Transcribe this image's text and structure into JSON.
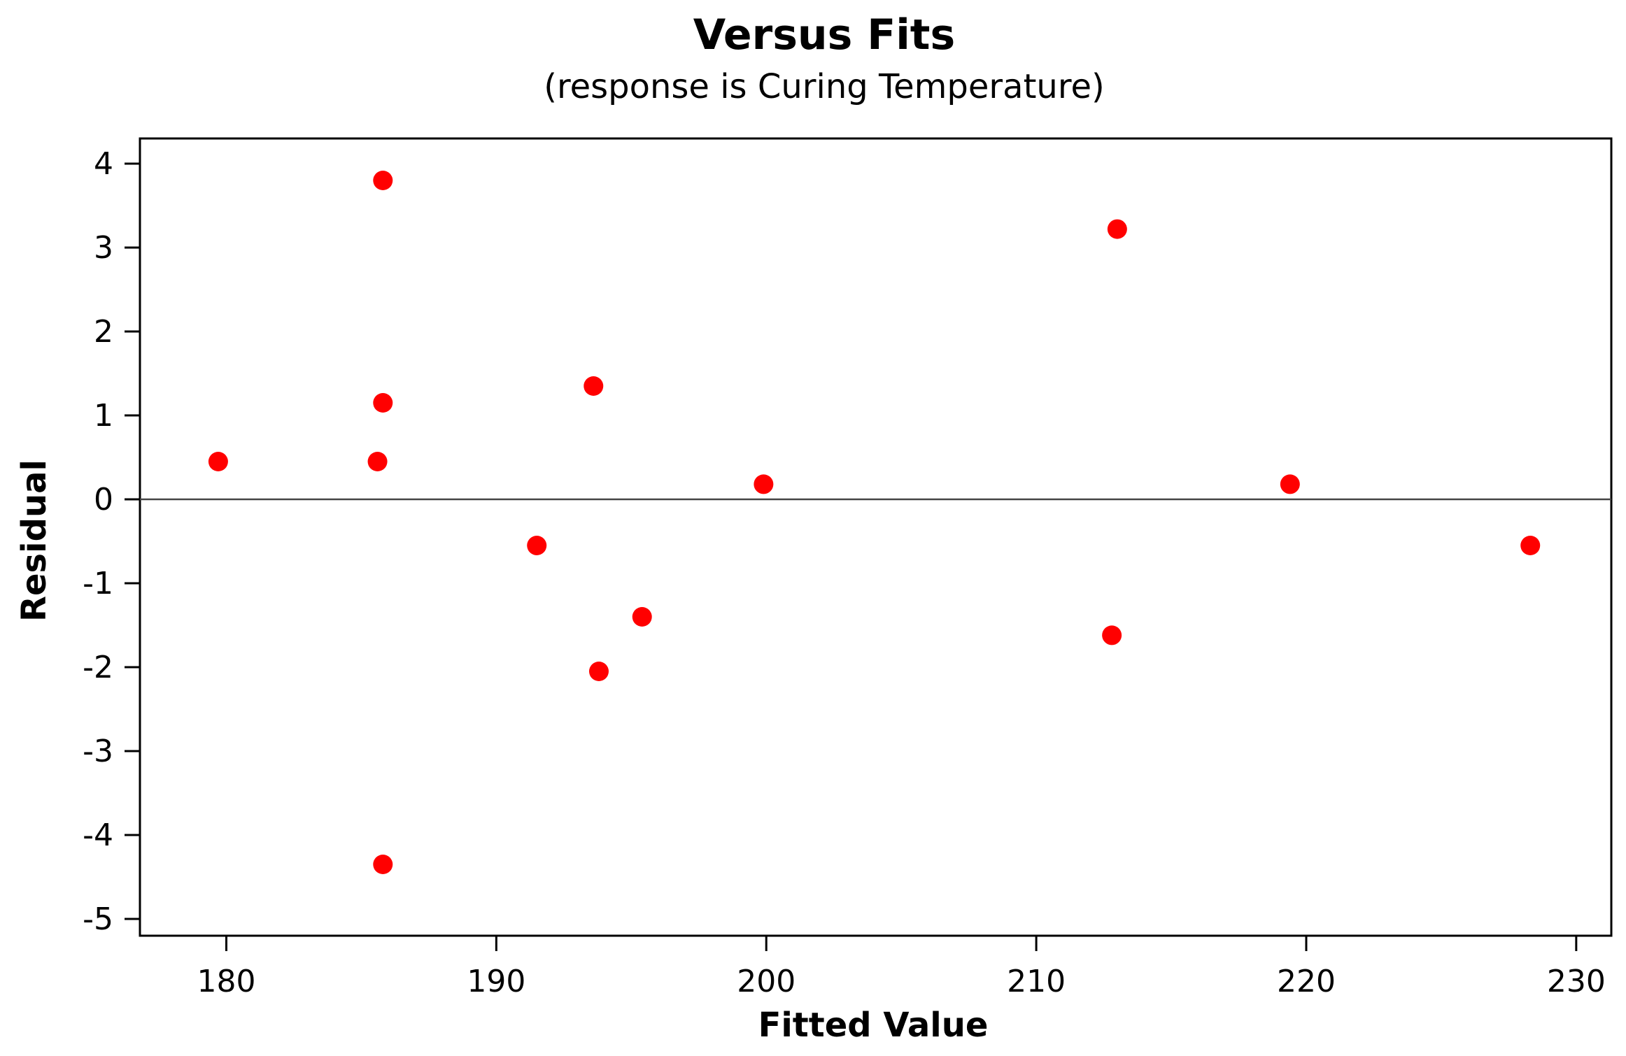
{
  "chart_data": {
    "type": "scatter",
    "title": "Versus Fits",
    "subtitle": "(response is Curing Temperature)",
    "xlabel": "Fitted Value",
    "ylabel": "Residual",
    "xlim": [
      176.8,
      231.3
    ],
    "ylim": [
      -5.2,
      4.3
    ],
    "xticks": [
      180,
      190,
      200,
      210,
      220,
      230
    ],
    "yticks": [
      -5,
      -4,
      -3,
      -2,
      -1,
      0,
      1,
      2,
      3,
      4
    ],
    "reference_line": {
      "y": 0
    },
    "grid": false,
    "legend": "none",
    "points": [
      {
        "x": 179.7,
        "y": 0.45
      },
      {
        "x": 185.6,
        "y": 0.45
      },
      {
        "x": 185.8,
        "y": 3.8
      },
      {
        "x": 185.8,
        "y": 1.15
      },
      {
        "x": 185.8,
        "y": -4.35
      },
      {
        "x": 191.5,
        "y": -0.55
      },
      {
        "x": 193.6,
        "y": 1.35
      },
      {
        "x": 193.8,
        "y": -2.05
      },
      {
        "x": 195.4,
        "y": -1.4
      },
      {
        "x": 199.9,
        "y": 0.18
      },
      {
        "x": 212.8,
        "y": -1.62
      },
      {
        "x": 213.0,
        "y": 3.22
      },
      {
        "x": 219.4,
        "y": 0.18
      },
      {
        "x": 228.3,
        "y": -0.55
      }
    ],
    "colors": {
      "points": "#ff0000",
      "axes": "#000000",
      "reference_line": "#444444"
    }
  }
}
